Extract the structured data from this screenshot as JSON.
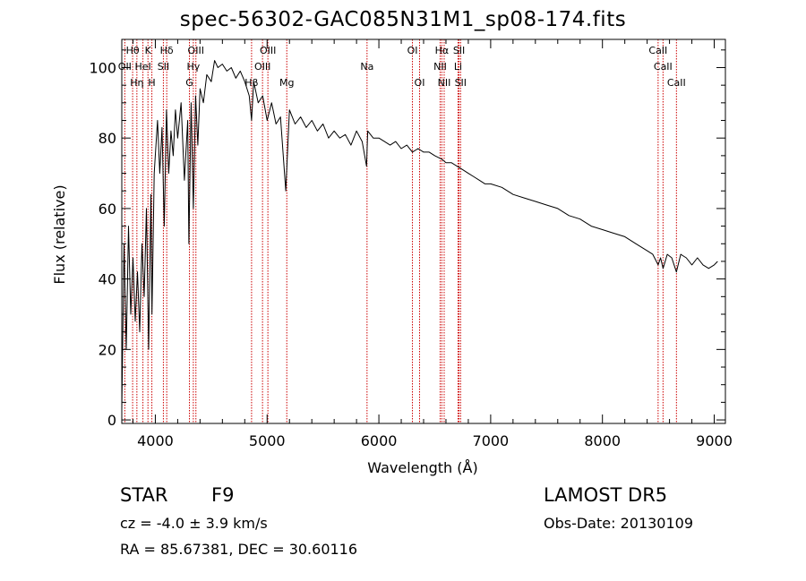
{
  "header": {
    "title": "spec-56302-GAC085N31M1_sp08-174.fits"
  },
  "info": {
    "class_label": "STAR",
    "subclass": "F9",
    "survey": "LAMOST DR5",
    "cz": "cz = -4.0 ± 3.9 km/s",
    "obs_date": "Obs-Date: 20130109",
    "coords": "RA =  85.67381, DEC =  30.60116"
  },
  "colors": {
    "line_marker": "#cc0000",
    "spectrum": "#000000",
    "axes": "#000000"
  },
  "chart_data": {
    "type": "line",
    "title": "spec-56302-GAC085N31M1_sp08-174.fits",
    "xlabel": "Wavelength (Å)",
    "ylabel": "Flux (relative)",
    "xlim": [
      3700,
      9100
    ],
    "ylim": [
      -1,
      108
    ],
    "x_ticks": [
      4000,
      5000,
      6000,
      7000,
      8000,
      9000
    ],
    "y_ticks": [
      0,
      20,
      40,
      60,
      80,
      100
    ],
    "grid": false,
    "legend": "none",
    "series": [
      {
        "x": [
          3700,
          3720,
          3740,
          3760,
          3780,
          3800,
          3820,
          3840,
          3860,
          3880,
          3900,
          3920,
          3940,
          3960,
          3970,
          3990,
          4000,
          4020,
          4040,
          4060,
          4080,
          4100,
          4120,
          4140,
          4160,
          4180,
          4200,
          4230,
          4260,
          4290,
          4300,
          4320,
          4340,
          4360,
          4380,
          4400,
          4430,
          4460,
          4500,
          4530,
          4560,
          4600,
          4640,
          4680,
          4720,
          4760,
          4800,
          4840,
          4861,
          4880,
          4920,
          4960,
          5000,
          5040,
          5080,
          5120,
          5167,
          5200,
          5250,
          5300,
          5350,
          5400,
          5450,
          5500,
          5550,
          5600,
          5650,
          5700,
          5750,
          5800,
          5850,
          5890,
          5900,
          5950,
          6000,
          6050,
          6100,
          6150,
          6200,
          6250,
          6300,
          6350,
          6400,
          6450,
          6500,
          6563,
          6600,
          6650,
          6700,
          6750,
          6800,
          6850,
          6900,
          6950,
          7000,
          7100,
          7200,
          7300,
          7400,
          7500,
          7600,
          7700,
          7800,
          7900,
          8000,
          8100,
          8200,
          8300,
          8400,
          8450,
          8498,
          8520,
          8542,
          8580,
          8620,
          8662,
          8700,
          8750,
          8800,
          8850,
          8900,
          8950,
          9000,
          9030
        ],
        "y": [
          3,
          50,
          20,
          55,
          30,
          46,
          28,
          42,
          25,
          50,
          35,
          60,
          20,
          64,
          30,
          70,
          75,
          85,
          70,
          83,
          55,
          88,
          70,
          82,
          75,
          88,
          80,
          90,
          68,
          85,
          50,
          90,
          60,
          92,
          78,
          94,
          90,
          98,
          96,
          102,
          100,
          101,
          99,
          100,
          97,
          99,
          96,
          92,
          85,
          96,
          90,
          92,
          85,
          90,
          84,
          86,
          65,
          88,
          84,
          86,
          83,
          85,
          82,
          84,
          80,
          82,
          80,
          81,
          78,
          82,
          79,
          72,
          82,
          80,
          80,
          79,
          78,
          79,
          77,
          78,
          76,
          77,
          76,
          76,
          75,
          74,
          73,
          73,
          72,
          71,
          70,
          69,
          68,
          67,
          67,
          66,
          64,
          63,
          62,
          61,
          60,
          58,
          57,
          55,
          54,
          53,
          52,
          50,
          48,
          47,
          44,
          46,
          43,
          47,
          46,
          42,
          47,
          46,
          44,
          46,
          44,
          43,
          44,
          45
        ]
      }
    ],
    "line_markers": [
      {
        "label": "OII",
        "x": 3727,
        "row": 1
      },
      {
        "label": "Hθ",
        "x": 3797,
        "row": 0
      },
      {
        "label": "Hη",
        "x": 3835,
        "row": 2
      },
      {
        "label": "HeI",
        "x": 3889,
        "row": 1
      },
      {
        "label": "K",
        "x": 3934,
        "row": 0
      },
      {
        "label": "H",
        "x": 3969,
        "row": 2
      },
      {
        "label": "SII",
        "x": 4072,
        "row": 1
      },
      {
        "label": "Hδ",
        "x": 4102,
        "row": 0
      },
      {
        "label": "G",
        "x": 4305,
        "row": 2
      },
      {
        "label": "Hγ",
        "x": 4340,
        "row": 1
      },
      {
        "label": "OIII",
        "x": 4363,
        "row": 0
      },
      {
        "label": "Hβ",
        "x": 4861,
        "row": 2
      },
      {
        "label": "OIII",
        "x": 4959,
        "row": 1
      },
      {
        "label": "OIII",
        "x": 5007,
        "row": 0
      },
      {
        "label": "Mg",
        "x": 5176,
        "row": 2
      },
      {
        "label": "Na",
        "x": 5894,
        "row": 1
      },
      {
        "label": "OI",
        "x": 6300,
        "row": 0
      },
      {
        "label": "OI",
        "x": 6364,
        "row": 2
      },
      {
        "label": "NII",
        "x": 6548,
        "row": 1
      },
      {
        "label": "Hα",
        "x": 6563,
        "row": 0
      },
      {
        "label": "NII",
        "x": 6584,
        "row": 2
      },
      {
        "label": "SII",
        "x": 6717,
        "row": 0
      },
      {
        "label": "Li",
        "x": 6708,
        "row": 1
      },
      {
        "label": "SII",
        "x": 6731,
        "row": 2
      },
      {
        "label": "CaII",
        "x": 8498,
        "row": 0
      },
      {
        "label": "CaII",
        "x": 8542,
        "row": 1
      },
      {
        "label": "CaII",
        "x": 8662,
        "row": 2
      }
    ]
  }
}
